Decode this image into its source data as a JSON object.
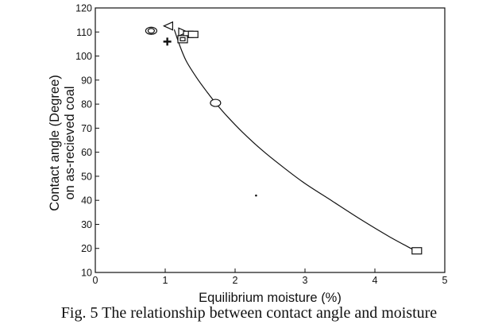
{
  "chart_data": {
    "type": "scatter",
    "xlabel": "Equilibrium moisture (%)",
    "ylabel": [
      "Contact angle (Degree)",
      "on as-recieved coal"
    ],
    "xlim": [
      0,
      5
    ],
    "ylim": [
      10,
      120
    ],
    "x_ticks": [
      0,
      1,
      2,
      3,
      4,
      5
    ],
    "y_ticks": [
      10,
      20,
      30,
      40,
      50,
      60,
      70,
      80,
      90,
      100,
      110,
      120
    ],
    "grid": false,
    "legend": "none",
    "points": [
      {
        "x": 0.8,
        "y": 110.5,
        "marker": "double-circle"
      },
      {
        "x": 1.05,
        "y": 112.5,
        "marker": "triangle-left"
      },
      {
        "x": 1.03,
        "y": 106,
        "marker": "plus"
      },
      {
        "x": 1.25,
        "y": 110,
        "marker": "triangle-right"
      },
      {
        "x": 1.33,
        "y": 109,
        "marker": "square"
      },
      {
        "x": 1.4,
        "y": 109,
        "marker": "square"
      },
      {
        "x": 1.25,
        "y": 107,
        "marker": "double-square"
      },
      {
        "x": 1.72,
        "y": 80.5,
        "marker": "circle"
      },
      {
        "x": 2.3,
        "y": 42,
        "marker": "dot"
      },
      {
        "x": 4.6,
        "y": 19,
        "marker": "square"
      }
    ],
    "fit_curve": {
      "type": "line",
      "x": [
        1.13,
        1.2,
        1.3,
        1.45,
        1.6,
        1.72,
        1.9,
        2.1,
        2.4,
        2.7,
        3.0,
        3.4,
        3.8,
        4.2,
        4.58
      ],
      "y": [
        111,
        105,
        98,
        91,
        85,
        80.5,
        74.5,
        68.5,
        60.5,
        53.5,
        47,
        39.5,
        32,
        25,
        19
      ]
    }
  },
  "caption": "Fig. 5  The relationship between contact angle and moisture"
}
